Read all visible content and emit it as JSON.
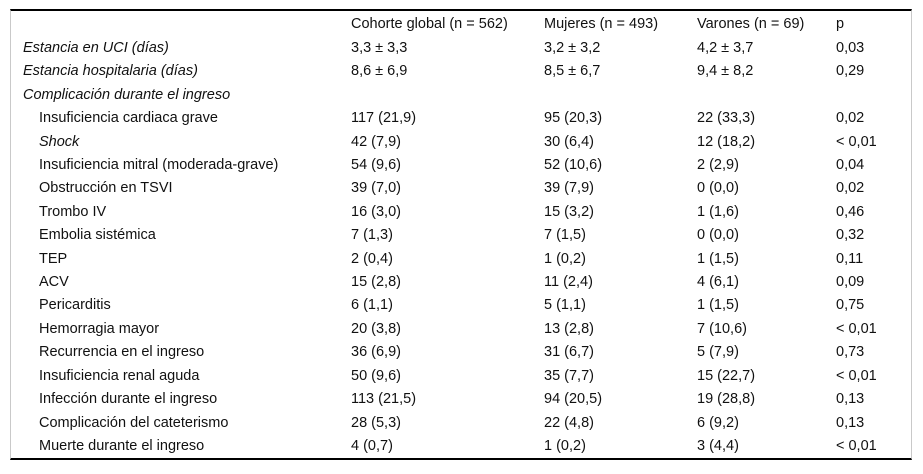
{
  "table": {
    "columns": [
      "",
      "Cohorte global (n = 562)",
      "Mujeres (n = 493)",
      "Varones (n = 69)",
      "p"
    ],
    "rows": [
      {
        "label": "Estancia en UCI (días)",
        "italic": true,
        "indent": false,
        "values": [
          "3,3 ± 3,3",
          "3,2 ± 3,2",
          "4,2 ± 3,7",
          "0,03"
        ]
      },
      {
        "label": "Estancia hospitalaria (días)",
        "italic": true,
        "indent": false,
        "values": [
          "8,6 ± 6,9",
          "8,5 ± 6,7",
          "9,4 ± 8,2",
          "0,29"
        ]
      },
      {
        "label": "Complicación durante el ingreso",
        "italic": true,
        "indent": false,
        "values": [
          "",
          "",
          "",
          ""
        ]
      },
      {
        "label": "Insuficiencia cardiaca grave",
        "italic": false,
        "indent": true,
        "values": [
          "117 (21,9)",
          "95 (20,3)",
          "22 (33,3)",
          "0,02"
        ]
      },
      {
        "label": "Shock",
        "italic": true,
        "indent": true,
        "values": [
          "42 (7,9)",
          "30 (6,4)",
          "12 (18,2)",
          "< 0,01"
        ]
      },
      {
        "label": "Insuficiencia mitral (moderada-grave)",
        "italic": false,
        "indent": true,
        "values": [
          "54 (9,6)",
          "52 (10,6)",
          "2 (2,9)",
          "0,04"
        ]
      },
      {
        "label": "Obstrucción en TSVI",
        "italic": false,
        "indent": true,
        "values": [
          "39 (7,0)",
          "39 (7,9)",
          "0 (0,0)",
          "0,02"
        ]
      },
      {
        "label": "Trombo IV",
        "italic": false,
        "indent": true,
        "values": [
          "16 (3,0)",
          "15 (3,2)",
          "1 (1,6)",
          "0,46"
        ]
      },
      {
        "label": "Embolia sistémica",
        "italic": false,
        "indent": true,
        "values": [
          "7 (1,3)",
          "7 (1,5)",
          "0 (0,0)",
          "0,32"
        ]
      },
      {
        "label": "TEP",
        "italic": false,
        "indent": true,
        "values": [
          "2 (0,4)",
          "1 (0,2)",
          "1 (1,5)",
          "0,11"
        ]
      },
      {
        "label": "ACV",
        "italic": false,
        "indent": true,
        "values": [
          "15 (2,8)",
          "11 (2,4)",
          "4 (6,1)",
          "0,09"
        ]
      },
      {
        "label": "Pericarditis",
        "italic": false,
        "indent": true,
        "values": [
          "6 (1,1)",
          "5 (1,1)",
          "1 (1,5)",
          "0,75"
        ]
      },
      {
        "label": "Hemorragia mayor",
        "italic": false,
        "indent": true,
        "values": [
          "20 (3,8)",
          "13 (2,8)",
          "7 (10,6)",
          "< 0,01"
        ]
      },
      {
        "label": "Recurrencia en el ingreso",
        "italic": false,
        "indent": true,
        "values": [
          "36 (6,9)",
          "31 (6,7)",
          "5 (7,9)",
          "0,73"
        ]
      },
      {
        "label": "Insuficiencia renal aguda",
        "italic": false,
        "indent": true,
        "values": [
          "50 (9,6)",
          "35 (7,7)",
          "15 (22,7)",
          "< 0,01"
        ]
      },
      {
        "label": "Infección durante el ingreso",
        "italic": false,
        "indent": true,
        "values": [
          "113 (21,5)",
          "94 (20,5)",
          "19 (28,8)",
          "0,13"
        ]
      },
      {
        "label": "Complicación del cateterismo",
        "italic": false,
        "indent": true,
        "values": [
          "28 (5,3)",
          "22 (4,8)",
          "6 (9,2)",
          "0,13"
        ]
      },
      {
        "label": "Muerte durante el ingreso",
        "italic": false,
        "indent": true,
        "values": [
          "4 (0,7)",
          "1 (0,2)",
          "3 (4,4)",
          "< 0,01"
        ]
      }
    ]
  }
}
